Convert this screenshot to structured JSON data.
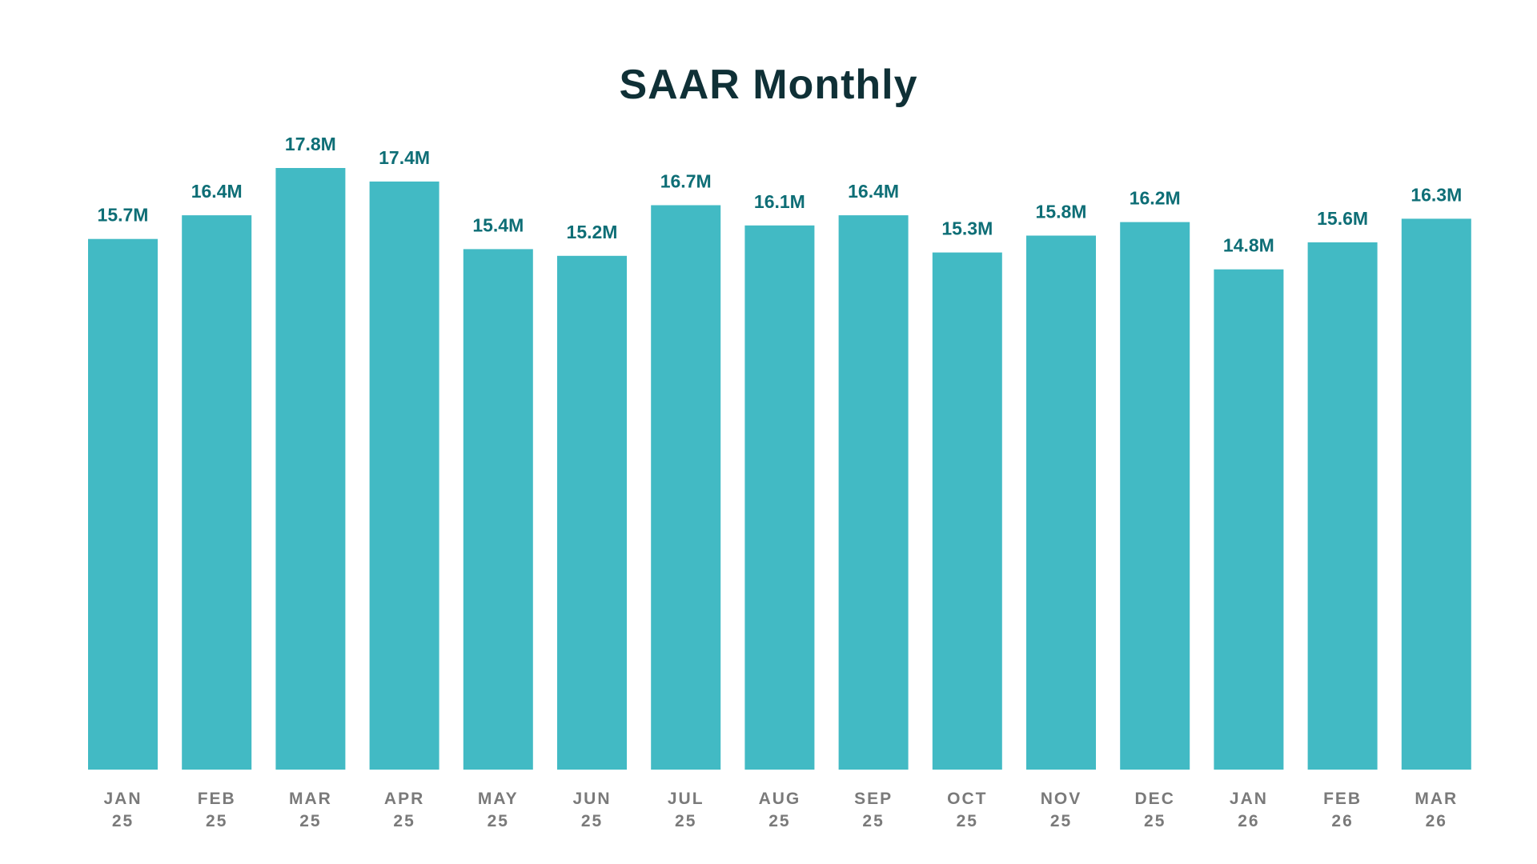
{
  "chart_data": {
    "type": "bar",
    "title": "SAAR Monthly",
    "xlabel": "",
    "ylabel": "",
    "categories": [
      [
        "JAN",
        "25"
      ],
      [
        "FEB",
        "25"
      ],
      [
        "MAR",
        "25"
      ],
      [
        "APR",
        "25"
      ],
      [
        "MAY",
        "25"
      ],
      [
        "JUN",
        "25"
      ],
      [
        "JUL",
        "25"
      ],
      [
        "AUG",
        "25"
      ],
      [
        "SEP",
        "25"
      ],
      [
        "OCT",
        "25"
      ],
      [
        "NOV",
        "25"
      ],
      [
        "DEC",
        "25"
      ],
      [
        "JAN",
        "26"
      ],
      [
        "FEB",
        "26"
      ],
      [
        "MAR",
        "26"
      ]
    ],
    "values": [
      15.7,
      16.4,
      17.8,
      17.4,
      15.4,
      15.2,
      16.7,
      16.1,
      16.4,
      15.3,
      15.8,
      16.2,
      14.8,
      15.6,
      16.3
    ],
    "data_labels": [
      "15.7M",
      "16.4M",
      "17.8M",
      "17.4M",
      "15.4M",
      "15.2M",
      "16.7M",
      "16.1M",
      "16.4M",
      "15.3M",
      "15.8M",
      "16.2M",
      "14.8M",
      "15.6M",
      "16.3M"
    ],
    "units": "M",
    "ylim": [
      0,
      17.8
    ],
    "grid": false,
    "legend": "none",
    "bar_color": "#42bac4",
    "label_color": "#0e6e76",
    "title_color": "#0f3036",
    "tick_color": "#7a7a7a"
  }
}
